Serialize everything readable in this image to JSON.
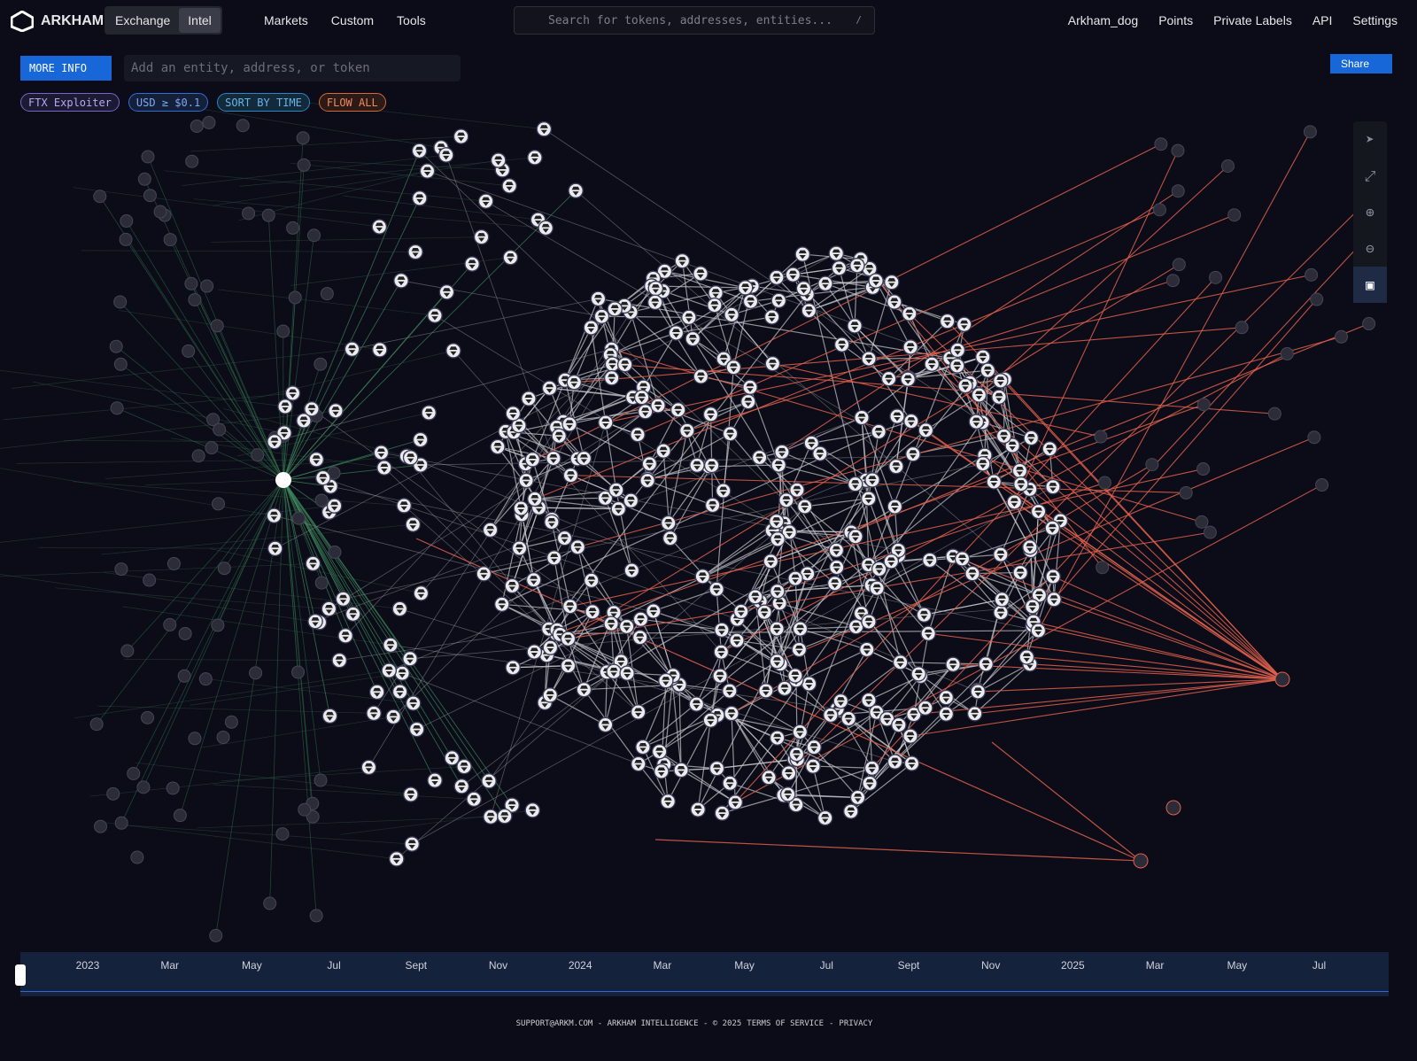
{
  "nav": {
    "brand": "ARKHAM",
    "tabs": [
      "Exchange",
      "Intel"
    ],
    "menus": [
      "Markets",
      "Custom",
      "Tools"
    ],
    "search_placeholder": "Search for tokens, addresses, entities...",
    "search_shortcut": "/",
    "links": [
      "Arkham_dog",
      "Points",
      "Private Labels",
      "API",
      "Settings"
    ]
  },
  "toolbar": {
    "more_info": "MORE INFO",
    "entity_placeholder": "Add an entity, address, or token",
    "share": "Share",
    "filters": [
      "FTX Exploiter",
      "USD ≥ $0.1",
      "SORT BY TIME",
      "FLOW ALL"
    ]
  },
  "timeline": {
    "labels": [
      "2023",
      "Mar",
      "May",
      "Jul",
      "Sept",
      "Nov",
      "2024",
      "Mar",
      "May",
      "Jul",
      "Sept",
      "Nov",
      "2025",
      "Mar",
      "May",
      "Jul"
    ]
  },
  "footer": {
    "text": "SUPPORT@ARKM.COM - ARKHAM INTELLIGENCE - © 2025",
    "links": [
      "TERMS OF SERVICE",
      "PRIVACY"
    ],
    "separator": "-"
  }
}
